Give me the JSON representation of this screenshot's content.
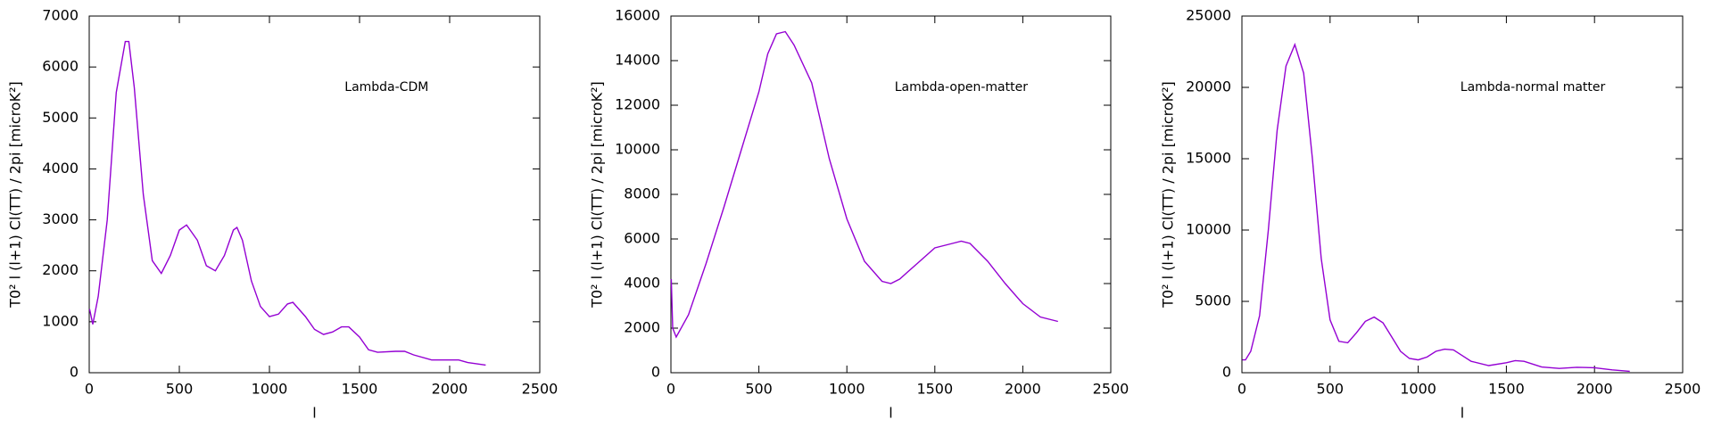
{
  "chart_data": [
    {
      "type": "line",
      "annotation": "Lambda-CDM",
      "xlabel": "l",
      "ylabel": "T0² l (l+1) Cl(TT) / 2pi [microK²]",
      "color": "#9400d3",
      "x": [
        2,
        20,
        50,
        100,
        150,
        200,
        220,
        250,
        300,
        350,
        400,
        450,
        500,
        540,
        600,
        650,
        700,
        750,
        800,
        820,
        850,
        900,
        950,
        1000,
        1050,
        1100,
        1130,
        1200,
        1250,
        1300,
        1350,
        1400,
        1440,
        1500,
        1550,
        1600,
        1700,
        1750,
        1800,
        1900,
        2000,
        2050,
        2100,
        2200
      ],
      "values": [
        1250,
        950,
        1500,
        3000,
        5500,
        6500,
        6500,
        5600,
        3500,
        2200,
        1950,
        2300,
        2800,
        2900,
        2600,
        2100,
        2000,
        2300,
        2800,
        2850,
        2600,
        1800,
        1300,
        1100,
        1150,
        1350,
        1380,
        1100,
        850,
        750,
        800,
        900,
        900,
        700,
        450,
        400,
        420,
        420,
        350,
        250,
        250,
        250,
        200,
        150
      ],
      "xlim": [
        0,
        2500
      ],
      "xticks": [
        0,
        500,
        1000,
        1500,
        2000,
        2500
      ],
      "ylim": [
        0,
        7000
      ],
      "yticks": [
        0,
        1000,
        2000,
        3000,
        4000,
        5000,
        6000,
        7000
      ]
    },
    {
      "type": "line",
      "annotation": "Lambda-open-matter",
      "xlabel": "l",
      "ylabel": "T0² l (l+1) Cl(TT) / 2pi [microK²]",
      "color": "#9400d3",
      "x": [
        2,
        10,
        30,
        100,
        200,
        300,
        400,
        500,
        550,
        600,
        650,
        700,
        800,
        900,
        1000,
        1100,
        1200,
        1250,
        1300,
        1400,
        1500,
        1600,
        1650,
        1700,
        1800,
        1900,
        2000,
        2100,
        2200
      ],
      "values": [
        4200,
        2000,
        1600,
        2600,
        4900,
        7400,
        10000,
        12600,
        14300,
        15200,
        15300,
        14700,
        13000,
        9600,
        6900,
        5000,
        4100,
        4000,
        4200,
        4900,
        5600,
        5800,
        5900,
        5800,
        5000,
        4000,
        3100,
        2500,
        2300
      ],
      "xlim": [
        0,
        2500
      ],
      "xticks": [
        0,
        500,
        1000,
        1500,
        2000,
        2500
      ],
      "ylim": [
        0,
        16000
      ],
      "yticks": [
        0,
        2000,
        4000,
        6000,
        8000,
        10000,
        12000,
        14000,
        16000
      ]
    },
    {
      "type": "line",
      "annotation": "Lambda-normal matter",
      "xlabel": "l",
      "ylabel": "T0² l (l+1) Cl(TT) / 2pi [microK²]",
      "color": "#9400d3",
      "x": [
        2,
        20,
        50,
        100,
        150,
        200,
        250,
        300,
        350,
        400,
        450,
        500,
        550,
        600,
        650,
        700,
        750,
        800,
        850,
        900,
        950,
        1000,
        1050,
        1100,
        1150,
        1200,
        1250,
        1300,
        1400,
        1500,
        1550,
        1600,
        1700,
        1800,
        1900,
        2000,
        2100,
        2200
      ],
      "values": [
        900,
        900,
        1500,
        4000,
        10000,
        17000,
        21500,
        23000,
        21000,
        15000,
        8000,
        3700,
        2200,
        2100,
        2800,
        3600,
        3900,
        3500,
        2500,
        1500,
        1000,
        900,
        1100,
        1500,
        1650,
        1600,
        1200,
        800,
        500,
        700,
        850,
        800,
        400,
        300,
        380,
        350,
        200,
        100
      ],
      "xlim": [
        0,
        2500
      ],
      "xticks": [
        0,
        500,
        1000,
        1500,
        2000,
        2500
      ],
      "ylim": [
        0,
        25000
      ],
      "yticks": [
        0,
        5000,
        10000,
        15000,
        20000,
        25000
      ]
    }
  ]
}
